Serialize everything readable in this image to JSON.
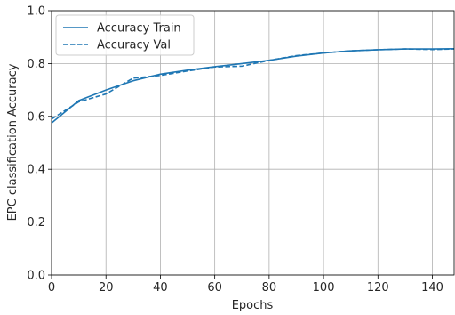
{
  "chart_data": {
    "type": "line",
    "xlabel": "Epochs",
    "ylabel": "EPC classification Accuracy",
    "xlim": [
      0,
      148
    ],
    "ylim": [
      0.0,
      1.0
    ],
    "x_ticks": [
      "0",
      "20",
      "40",
      "60",
      "80",
      "100",
      "120",
      "140"
    ],
    "y_ticks": [
      "0.0",
      "0.2",
      "0.4",
      "0.6",
      "0.8",
      "1.0"
    ],
    "grid": true,
    "legend_position": "top-left",
    "series": [
      {
        "name": "Accuracy Train",
        "style": "solid",
        "color": "#1f77b4",
        "x": [
          0,
          10,
          20,
          30,
          40,
          50,
          60,
          70,
          80,
          90,
          100,
          110,
          120,
          130,
          140,
          148
        ],
        "y": [
          0.575,
          0.66,
          0.7,
          0.735,
          0.76,
          0.775,
          0.788,
          0.8,
          0.812,
          0.828,
          0.84,
          0.848,
          0.852,
          0.855,
          0.855,
          0.856
        ]
      },
      {
        "name": "Accuracy Val",
        "style": "dashed",
        "color": "#1f77b4",
        "x": [
          0,
          10,
          20,
          30,
          40,
          50,
          60,
          70,
          80,
          90,
          100,
          110,
          120,
          130,
          140,
          148
        ],
        "y": [
          0.59,
          0.655,
          0.685,
          0.745,
          0.755,
          0.772,
          0.787,
          0.79,
          0.812,
          0.83,
          0.84,
          0.848,
          0.852,
          0.855,
          0.853,
          0.855
        ]
      }
    ]
  }
}
